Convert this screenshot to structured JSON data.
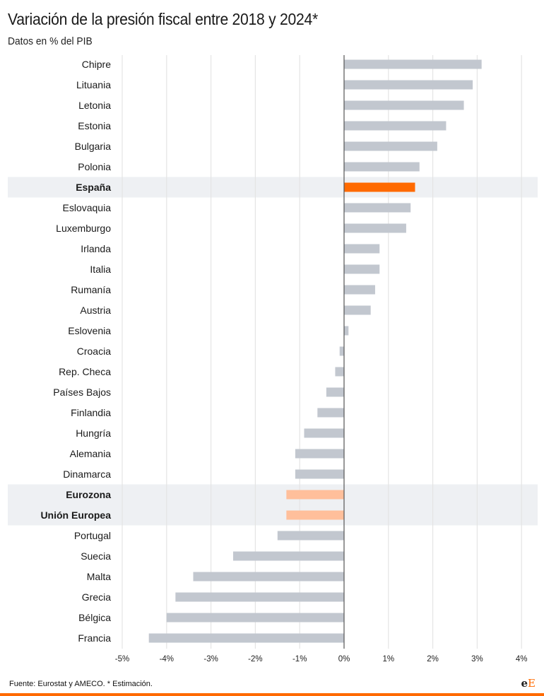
{
  "chart_data": {
    "type": "bar",
    "orientation": "horizontal",
    "title": "Variación de la presión fiscal entre 2018 y 2024*",
    "subtitle": "Datos en % del PIB",
    "xlabel": "",
    "ylabel": "",
    "xlim": [
      -5,
      4
    ],
    "grid": true,
    "ticks": [
      -5,
      -4,
      -3,
      -2,
      -1,
      0,
      1,
      2,
      3,
      4
    ],
    "tick_labels": [
      "-5%",
      "-4%",
      "-3%",
      "-2%",
      "-1%",
      "0%",
      "1%",
      "2%",
      "3%",
      "4%"
    ],
    "categories": [
      "Chipre",
      "Lituania",
      "Letonia",
      "Estonia",
      "Bulgaria",
      "Polonia",
      "España",
      "Eslovaquia",
      "Luxemburgo",
      "Irlanda",
      "Italia",
      "Rumanía",
      "Austria",
      "Eslovenia",
      "Croacia",
      "Rep. Checa",
      "Países Bajos",
      "Finlandia",
      "Hungría",
      "Alemania",
      "Dinamarca",
      "Eurozona",
      "Unión Europea",
      "Portugal",
      "Suecia",
      "Malta",
      "Grecia",
      "Bélgica",
      "Francia"
    ],
    "values": [
      3.1,
      2.9,
      2.7,
      2.3,
      2.1,
      1.7,
      1.6,
      1.5,
      1.4,
      0.8,
      0.8,
      0.7,
      0.6,
      0.1,
      -0.1,
      -0.2,
      -0.4,
      -0.6,
      -0.9,
      -1.1,
      -1.1,
      -1.3,
      -1.3,
      -1.5,
      -2.5,
      -3.4,
      -3.8,
      -4.0,
      -4.4
    ],
    "highlight": {
      "España": "primary",
      "Eurozona": "secondary",
      "Unión Europea": "secondary"
    },
    "colors": {
      "default": "#c2c7cf",
      "primary": "#ff6a00",
      "secondary": "#ffbf9b",
      "highlight_band": "#eef0f3",
      "grid": "#e4e4e4",
      "zero_line": "#555555"
    }
  },
  "footer": {
    "source": "Fuente: Eurostat y AMECO. * Estimación.",
    "logo": "eE"
  }
}
